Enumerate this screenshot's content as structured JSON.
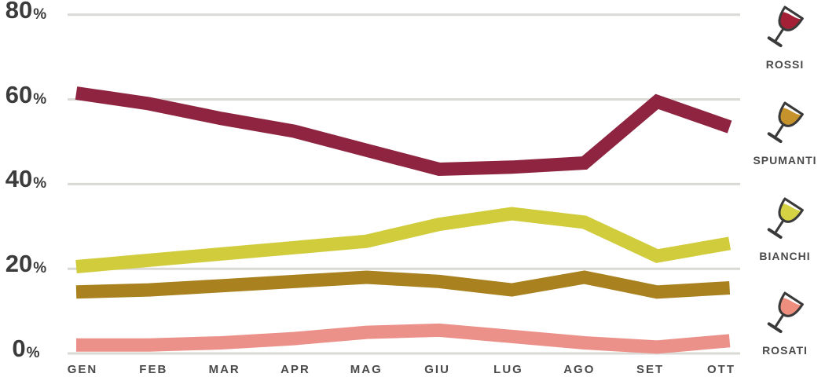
{
  "page": {
    "background": "#FFFFFF"
  },
  "chart_data": {
    "type": "line",
    "title": "",
    "categories": [
      "GEN",
      "FEB",
      "MAR",
      "APR",
      "MAG",
      "GIU",
      "LUG",
      "AGO",
      "SET",
      "OTT"
    ],
    "series": [
      {
        "name": "ROSSI",
        "color": "#8E2440",
        "values": [
          61.5,
          59,
          55.5,
          52.5,
          48,
          43.5,
          44,
          45,
          59.5,
          53.5
        ]
      },
      {
        "name": "SPUMANTI",
        "color": "#A9821F",
        "values": [
          14.5,
          15,
          16,
          17,
          18,
          17,
          15,
          18,
          14.5,
          15.5
        ]
      },
      {
        "name": "BIANCHI",
        "color": "#D0CC3B",
        "values": [
          20.5,
          22,
          23.5,
          25,
          26.5,
          30.5,
          33,
          31,
          23,
          26
        ]
      },
      {
        "name": "ROSATI",
        "color": "#EB9189",
        "values": [
          2,
          2,
          2.5,
          3.5,
          5,
          5.5,
          4,
          2.5,
          1.5,
          3
        ]
      }
    ],
    "yticks": [
      80,
      60,
      40,
      20,
      0
    ],
    "ytick_suffix": "%",
    "ylim": [
      0,
      80
    ],
    "grid": true,
    "gridline_color": "#DAD9D5",
    "axis_label_color": "#3B3B3B",
    "x_label_color": "#4A4A4A",
    "legend_position": "right"
  },
  "legend": {
    "glass_outline_color": "#3A3A3A",
    "items": [
      {
        "label": "ROSSI",
        "line_color": "#8E2440",
        "glass_color": "#A32036"
      },
      {
        "label": "SPUMANTI",
        "line_color": "#A9821F",
        "glass_color": "#C6922B"
      },
      {
        "label": "BIANCHI",
        "line_color": "#D0CC3B",
        "glass_color": "#D5D243"
      },
      {
        "label": "ROSATI",
        "line_color": "#EB9189",
        "glass_color": "#ED8E7F"
      }
    ]
  }
}
